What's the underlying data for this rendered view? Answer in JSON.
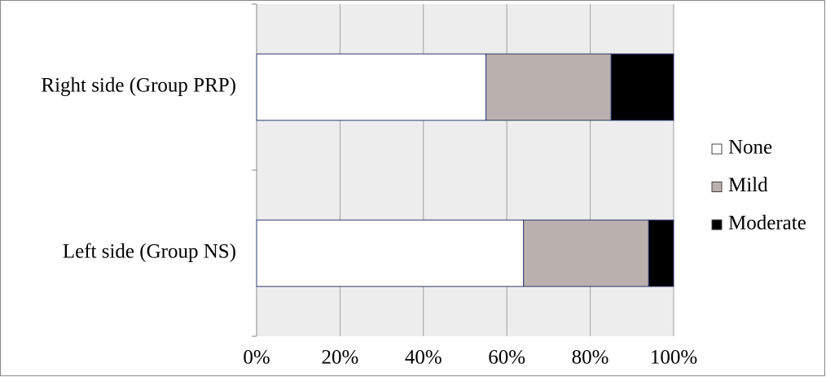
{
  "chart_data": {
    "type": "stacked-barh",
    "categories": [
      "Right side (Group PRP)",
      "Left side (Group NS)"
    ],
    "series": [
      {
        "name": "None",
        "color": "#ffffff",
        "values": [
          55,
          64
        ]
      },
      {
        "name": "Mild",
        "color": "#bab0ae",
        "values": [
          30,
          30
        ]
      },
      {
        "name": "Moderate",
        "color": "#000000",
        "values": [
          15,
          6
        ]
      }
    ],
    "xlim": [
      0,
      100
    ],
    "xticks": [
      {
        "value": 0,
        "label": "0%"
      },
      {
        "value": 20,
        "label": "20%"
      },
      {
        "value": 40,
        "label": "40%"
      },
      {
        "value": 60,
        "label": "60%"
      },
      {
        "value": 80,
        "label": "80%"
      },
      {
        "value": 100,
        "label": "100%"
      }
    ],
    "grid": true,
    "legend": "right"
  }
}
